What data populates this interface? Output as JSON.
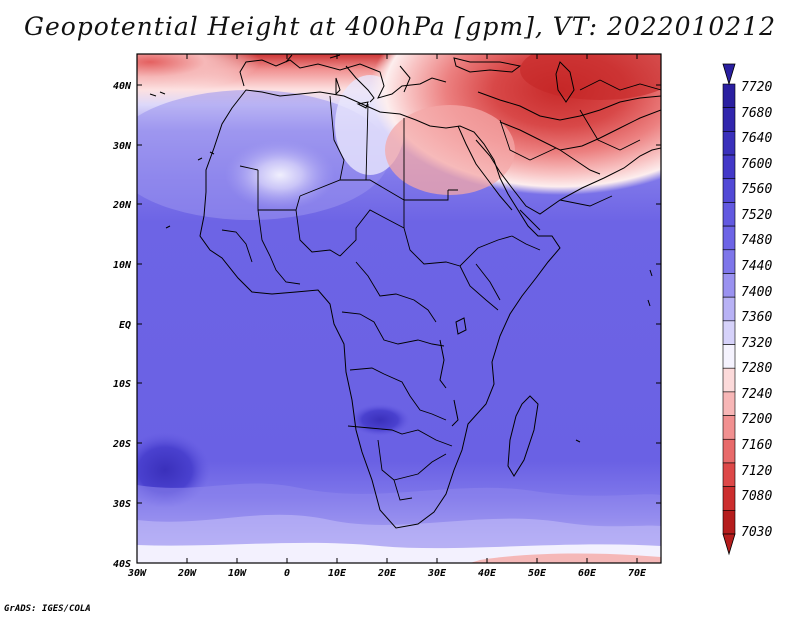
{
  "title": "Geopotential Height at 400hPa [gpm], VT: 2022010212",
  "credit": "GrADS: IGES/COLA",
  "map": {
    "variable": "Geopotential Height",
    "level": "400hPa",
    "units": "gpm",
    "valid_time": "2022010212",
    "region": "Africa",
    "lon_ticks": [
      "30W",
      "20W",
      "10W",
      "0",
      "10E",
      "20E",
      "30E",
      "40E",
      "50E",
      "60E",
      "70E"
    ],
    "lat_ticks": [
      "40N",
      "30N",
      "20N",
      "10N",
      "EQ",
      "10S",
      "20S",
      "30S",
      "40S"
    ]
  },
  "colorbar": {
    "labels": [
      "7720",
      "7680",
      "7640",
      "7600",
      "7560",
      "7520",
      "7480",
      "7440",
      "7400",
      "7360",
      "7320",
      "7280",
      "7240",
      "7200",
      "7160",
      "7120",
      "7080",
      "7030"
    ],
    "colors": [
      "#2a1fa0",
      "#3126ad",
      "#3a30bb",
      "#4338c8",
      "#5249d6",
      "#6259e0",
      "#6d64e6",
      "#7e76ea",
      "#9a92f0",
      "#b8b2f5",
      "#d6d2fa",
      "#f5f3fe",
      "#fcdada",
      "#f7b6b6",
      "#f19090",
      "#e86a6a",
      "#dd4848",
      "#cc2e2e",
      "#b51d1d"
    ]
  }
}
